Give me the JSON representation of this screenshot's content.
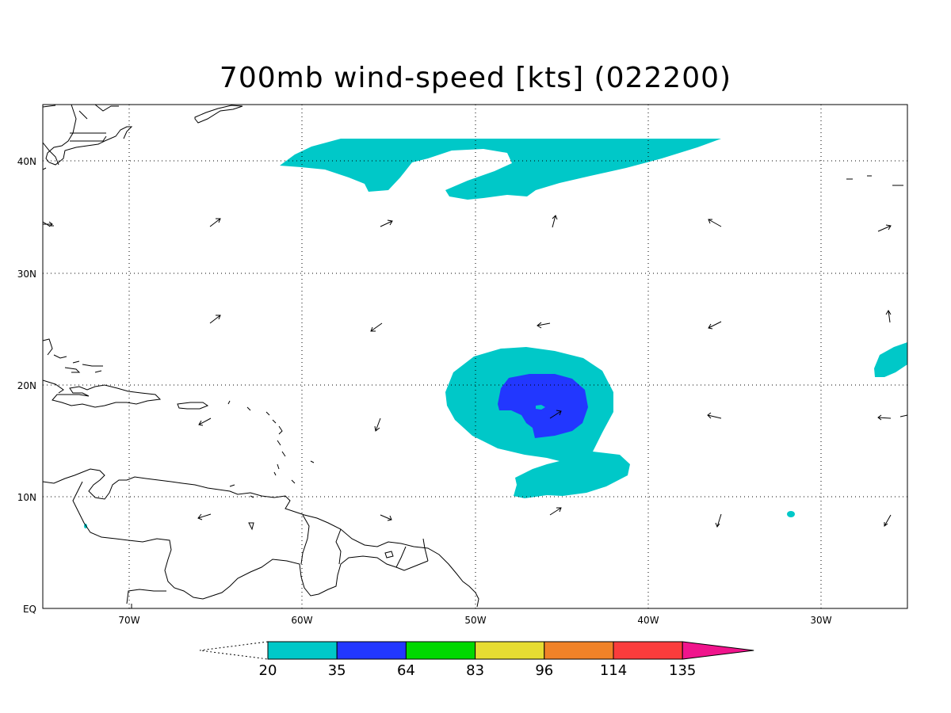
{
  "title": "700mb wind-speed [kts] (022200)",
  "lon_labels": [
    "70W",
    "60W",
    "50W",
    "40W",
    "30W"
  ],
  "lat_labels": [
    "40N",
    "30N",
    "20N",
    "10N",
    "EQ"
  ],
  "colorbar": {
    "thresholds": [
      "20",
      "35",
      "64",
      "83",
      "96",
      "114",
      "135"
    ],
    "colors": [
      "#00c8c8",
      "#2237ff",
      "#00d800",
      "#e6dc32",
      "#f08228",
      "#fa3c3c",
      "#f0148c"
    ]
  },
  "colors": {
    "wind_20_35": "#00c8c8",
    "wind_35_64": "#2237ff",
    "coastline": "#000000",
    "grid": "#000000"
  }
}
